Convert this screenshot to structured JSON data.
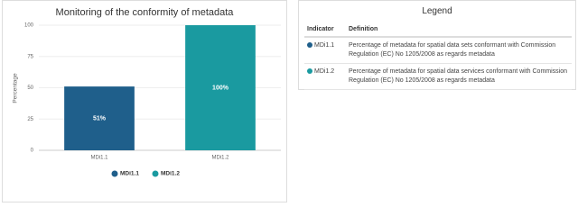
{
  "chart_data": {
    "type": "bar",
    "title": "Monitoring of the conformity of metadata",
    "y_label": "Percentage",
    "categories": [
      "MDi1.1",
      "MDi1.2"
    ],
    "values": [
      51,
      100
    ],
    "value_labels": [
      "51%",
      "100%"
    ],
    "colors": [
      "#1f5f8b",
      "#1a9aa0"
    ],
    "ylim": [
      0,
      100
    ],
    "yticks": [
      0,
      25,
      50,
      75,
      100
    ],
    "grid": true
  },
  "legend_panel": {
    "title": "Legend",
    "header": [
      "Indicator",
      "Definition"
    ],
    "rows": [
      [
        "MDi1.1",
        "Percentage of metadata for spatial data sets conformant with Commission Regulation (EC) No 1205/2008 as regards metadata"
      ],
      [
        "MDi1.2",
        "Percentage of metadata for spatial data services conformant with Commission Regulation (EC) No 1205/2008 as regards metadata"
      ]
    ]
  }
}
